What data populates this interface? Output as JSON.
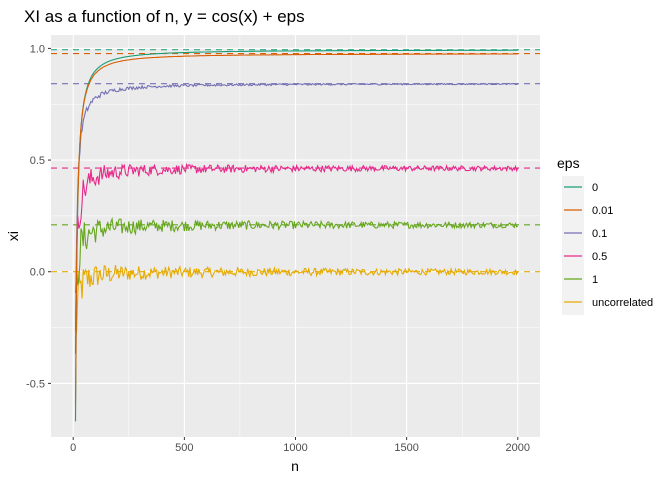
{
  "chart_data": {
    "type": "line",
    "title": "XI as a function of n, y = cos(x) + eps",
    "xlabel": "n",
    "ylabel": "xi",
    "xlim": [
      -100,
      2100
    ],
    "ylim": [
      -0.74,
      1.06
    ],
    "x_ticks": [
      0,
      500,
      1000,
      1500,
      2000
    ],
    "x_tick_labels": [
      "0",
      "500",
      "1000",
      "1500",
      "2000"
    ],
    "y_ticks": [
      -0.5,
      0.0,
      0.5,
      1.0
    ],
    "y_tick_labels": [
      "-0.5",
      "0.0",
      "0.5",
      "1.0"
    ],
    "grid": true,
    "legend": {
      "title": "eps",
      "placement": "right"
    },
    "n_range": [
      10,
      2000
    ],
    "series": [
      {
        "name": "0",
        "color": "#1B9E77",
        "asymptote": 0.994,
        "start": -0.67,
        "noise": 0.0
      },
      {
        "name": "0.01",
        "color": "#D95F02",
        "asymptote": 0.977,
        "start": -0.6,
        "noise": 0.01
      },
      {
        "name": "0.1",
        "color": "#7570B3",
        "asymptote": 0.842,
        "start": -0.3,
        "noise": 0.15
      },
      {
        "name": "0.5",
        "color": "#E7298A",
        "asymptote": 0.464,
        "start": -0.25,
        "noise": 0.6
      },
      {
        "name": "1",
        "color": "#66A61E",
        "asymptote": 0.21,
        "start": -0.25,
        "noise": 0.7
      },
      {
        "name": "uncorrelated",
        "color": "#E6AB02",
        "asymptote": 0.0,
        "start": -0.35,
        "noise": 0.7
      }
    ]
  }
}
